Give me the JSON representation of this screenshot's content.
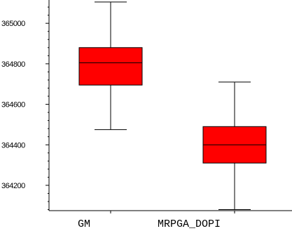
{
  "chart_data": {
    "type": "boxplot",
    "title": "",
    "xlabel": "",
    "ylabel": "",
    "ylim": [
      364075,
      365115
    ],
    "yticks": [
      364200,
      364400,
      364600,
      364800,
      365000
    ],
    "ytick_labels": [
      "364200",
      "364400",
      "364600",
      "364800",
      "365000"
    ],
    "categories": [
      "GM",
      "MRPGA_DOPI"
    ],
    "boxes": [
      {
        "whisker_low": 364475,
        "q1": 364695,
        "median": 364805,
        "q3": 364880,
        "whisker_high": 365105
      },
      {
        "whisker_low": 364080,
        "q1": 364310,
        "median": 364400,
        "q3": 364490,
        "whisker_high": 364710
      }
    ],
    "box_color": "#ff0000",
    "grid": false
  }
}
